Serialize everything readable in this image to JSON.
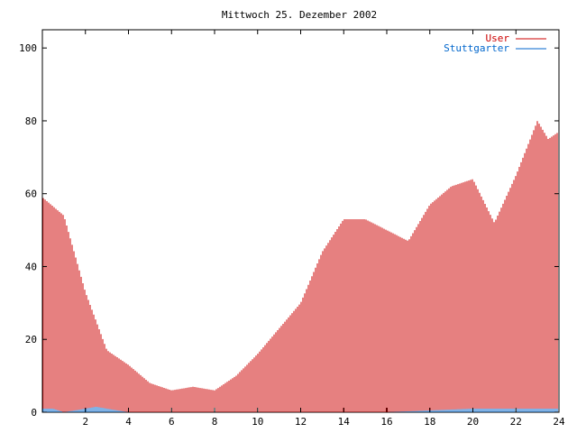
{
  "chart_data": {
    "type": "bar",
    "title": "Mittwoch 25. Dezember 2002",
    "xlabel": "",
    "ylabel": "",
    "xlim": [
      0,
      24
    ],
    "ylim": [
      0,
      105
    ],
    "x_ticks": [
      2,
      4,
      6,
      8,
      10,
      12,
      14,
      16,
      18,
      20,
      22,
      24
    ],
    "x_tick_labels": [
      "2",
      "4",
      "6",
      "8",
      "10",
      "12",
      "14",
      "16",
      "18",
      "20",
      "22",
      "24"
    ],
    "y_ticks": [
      0,
      20,
      40,
      60,
      80,
      100
    ],
    "y_tick_labels": [
      "0",
      "20",
      "40",
      "60",
      "80",
      "100"
    ],
    "grid": false,
    "legend_position": "top-right",
    "colors": {
      "user": "#cc0000",
      "stuttgarter": "#0066cc"
    },
    "series": [
      {
        "name": "User",
        "color": "#cc0000",
        "x": [
          0.0,
          1.0,
          2.0,
          3.0,
          4.0,
          5.0,
          6.0,
          7.0,
          8.0,
          9.0,
          10.0,
          11.0,
          12.0,
          13.0,
          14.0,
          15.0,
          16.0,
          17.0,
          18.0,
          19.0,
          20.0,
          21.0,
          22.0,
          23.0,
          23.5,
          24.0
        ],
        "values": [
          59,
          54,
          33,
          17,
          13,
          8,
          6,
          7,
          6,
          10,
          16,
          23,
          30,
          44,
          53,
          53,
          50,
          47,
          57,
          62,
          64,
          52,
          65,
          80,
          75,
          77
        ]
      },
      {
        "name": "Stuttgarter",
        "color": "#0066cc",
        "x": [
          0.0,
          0.5,
          1.0,
          2.0,
          2.5,
          3.0,
          4.0,
          8.0,
          12.0,
          16.0,
          18.0,
          20.0,
          22.0,
          24.0
        ],
        "values": [
          1,
          1,
          0,
          1,
          1.5,
          1,
          0,
          0,
          0,
          0,
          0.5,
          1,
          1,
          1
        ]
      }
    ]
  }
}
